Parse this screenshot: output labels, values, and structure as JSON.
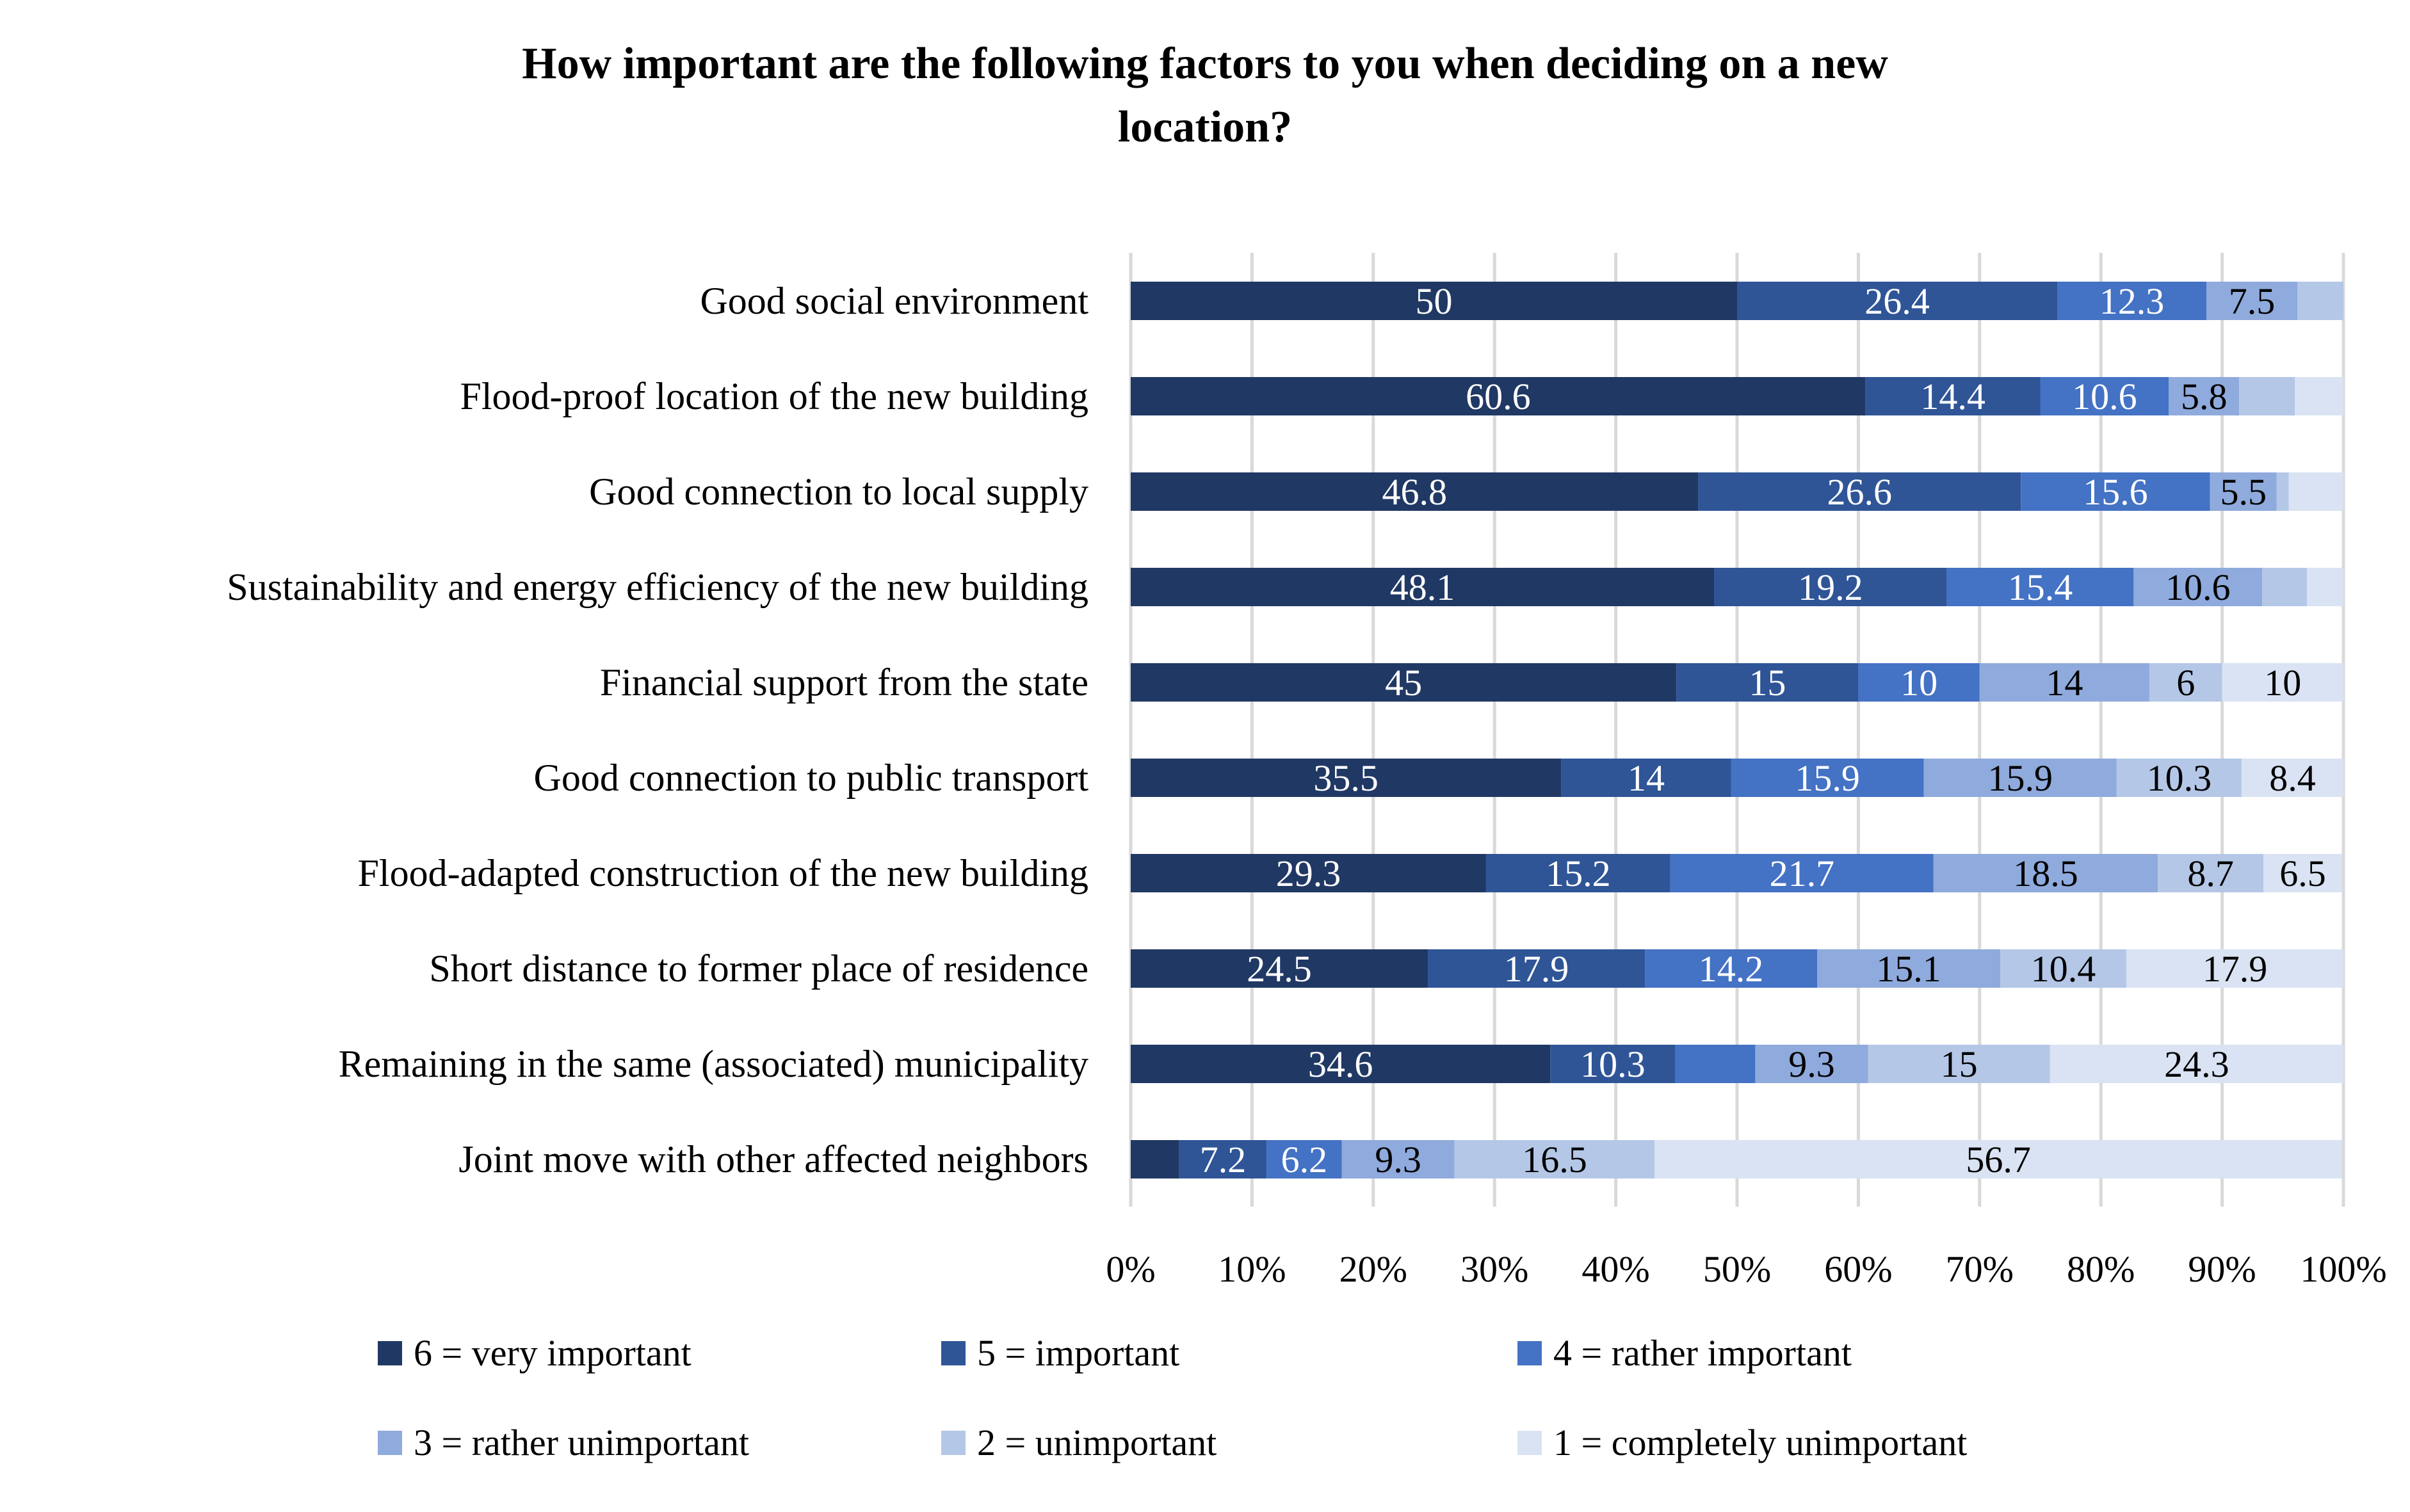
{
  "chart_data": {
    "type": "bar",
    "orientation": "horizontal",
    "stacked": "percent",
    "title": "How important are the following factors to you when deciding on a new location?",
    "title_lines": [
      "How important are the following factors to you when deciding on a new",
      "location?"
    ],
    "xlabel": "",
    "ylabel": "",
    "xlim": [
      0,
      100
    ],
    "x_ticks": [
      "0%",
      "10%",
      "20%",
      "30%",
      "40%",
      "50%",
      "60%",
      "70%",
      "80%",
      "90%",
      "100%"
    ],
    "grid": "vertical",
    "legend_position": "bottom",
    "categories": [
      "Good social environment",
      "Flood-proof location of the new building",
      "Good connection to local supply",
      "Sustainability and energy efficiency of the new building",
      "Financial support from the state",
      "Good connection to public transport",
      "Flood-adapted construction of the new building",
      "Short distance to former place of residence",
      "Remaining in the same (associated) municipality",
      "Joint move with other affected neighbors"
    ],
    "series": [
      {
        "name": "6 = very important",
        "color": "#203864",
        "label_color": "#ffffff",
        "values": [
          50,
          60.6,
          46.8,
          48.1,
          45,
          35.5,
          29.3,
          24.5,
          34.6,
          4
        ],
        "labels": [
          "50",
          "60.6",
          "46.8",
          "48.1",
          "45",
          "35.5",
          "29.3",
          "24.5",
          "34.6",
          ""
        ]
      },
      {
        "name": "5 = important",
        "color": "#2F5597",
        "label_color": "#ffffff",
        "values": [
          26.4,
          14.4,
          26.6,
          19.2,
          15,
          14,
          15.2,
          17.9,
          10.3,
          7.2
        ],
        "labels": [
          "26.4",
          "14.4",
          "26.6",
          "19.2",
          "15",
          "14",
          "15.2",
          "17.9",
          "10.3",
          "7.2"
        ]
      },
      {
        "name": "4 = rather important",
        "color": "#4472C4",
        "label_color": "#ffffff",
        "values": [
          12.3,
          10.6,
          15.6,
          15.4,
          10,
          15.9,
          21.7,
          14.2,
          6.6,
          6.2
        ],
        "labels": [
          "12.3",
          "10.6",
          "15.6",
          "15.4",
          "10",
          "15.9",
          "21.7",
          "14.2",
          "",
          "6.2"
        ]
      },
      {
        "name": "3 = rather unimportant",
        "color": "#8FAADC",
        "label_color": "#000000",
        "values": [
          7.5,
          5.8,
          5.5,
          10.6,
          14,
          15.9,
          18.5,
          15.1,
          9.3,
          9.3
        ],
        "labels": [
          "7.5",
          "5.8",
          "5.5",
          "10.6",
          "14",
          "15.9",
          "18.5",
          "15.1",
          "9.3",
          "9.3"
        ]
      },
      {
        "name": "2 = unimportant",
        "color": "#B4C7E7",
        "label_color": "#000000",
        "values": [
          3.8,
          4.6,
          1,
          3.7,
          6,
          10.3,
          8.7,
          10.4,
          15,
          16.5
        ],
        "labels": [
          "",
          "",
          "",
          "",
          "6",
          "10.3",
          "8.7",
          "10.4",
          "15",
          "16.5"
        ]
      },
      {
        "name": "1 = completely unimportant",
        "color": "#DAE3F3",
        "label_color": "#000000",
        "values": [
          0,
          4,
          4.5,
          3,
          10,
          8.4,
          6.5,
          17.9,
          24.3,
          56.7
        ],
        "labels": [
          "",
          "",
          "",
          "",
          "10",
          "8.4",
          "6.5",
          "17.9",
          "24.3",
          "56.7"
        ]
      }
    ]
  }
}
